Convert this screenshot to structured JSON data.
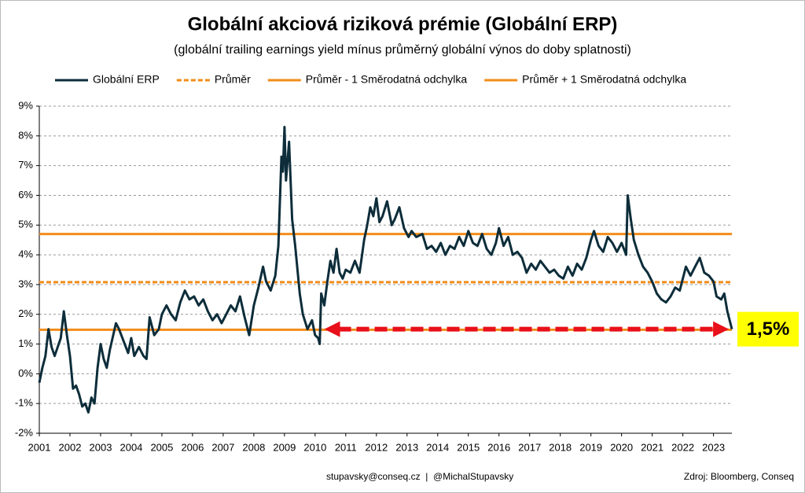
{
  "chart_data": {
    "type": "line",
    "title": "Globální akciová riziková prémie (Globální ERP)",
    "subtitle": "(globální trailing earnings yield mínus průměrný globální výnos do doby splatnosti)",
    "xlim": [
      2001,
      2023.6
    ],
    "xticks": [
      2001,
      2002,
      2003,
      2004,
      2005,
      2006,
      2007,
      2008,
      2009,
      2010,
      2011,
      2012,
      2013,
      2014,
      2015,
      2016,
      2017,
      2018,
      2019,
      2020,
      2021,
      2022,
      2023
    ],
    "ylim": [
      -2,
      9
    ],
    "yticks": [
      {
        "value": -2,
        "label": "-2%"
      },
      {
        "value": -1,
        "label": "-1%"
      },
      {
        "value": 0,
        "label": "0%"
      },
      {
        "value": 1,
        "label": "1%"
      },
      {
        "value": 2,
        "label": "2%"
      },
      {
        "value": 3,
        "label": "3%"
      },
      {
        "value": 4,
        "label": "4%"
      },
      {
        "value": 5,
        "label": "5%"
      },
      {
        "value": 6,
        "label": "6%"
      },
      {
        "value": 7,
        "label": "7%"
      },
      {
        "value": 8,
        "label": "8%"
      },
      {
        "value": 9,
        "label": "9%"
      }
    ],
    "grid": true,
    "x": [
      2001.0,
      2001.1,
      2001.2,
      2001.3,
      2001.4,
      2001.5,
      2001.6,
      2001.7,
      2001.8,
      2001.9,
      2002.0,
      2002.1,
      2002.2,
      2002.3,
      2002.4,
      2002.5,
      2002.6,
      2002.7,
      2002.8,
      2002.9,
      2003.0,
      2003.1,
      2003.2,
      2003.3,
      2003.5,
      2003.6,
      2003.75,
      2003.9,
      2004.0,
      2004.1,
      2004.25,
      2004.4,
      2004.5,
      2004.6,
      2004.75,
      2004.9,
      2005.0,
      2005.15,
      2005.3,
      2005.45,
      2005.6,
      2005.75,
      2005.9,
      2006.05,
      2006.2,
      2006.35,
      2006.5,
      2006.65,
      2006.8,
      2006.95,
      2007.1,
      2007.25,
      2007.4,
      2007.55,
      2007.7,
      2007.85,
      2008.0,
      2008.15,
      2008.3,
      2008.4,
      2008.55,
      2008.7,
      2008.8,
      2008.9,
      2008.95,
      2009.0,
      2009.05,
      2009.15,
      2009.25,
      2009.35,
      2009.5,
      2009.6,
      2009.75,
      2009.9,
      2010.0,
      2010.1,
      2010.15,
      2010.2,
      2010.3,
      2010.4,
      2010.5,
      2010.6,
      2010.7,
      2010.8,
      2010.9,
      2011.0,
      2011.15,
      2011.3,
      2011.45,
      2011.6,
      2011.7,
      2011.8,
      2011.9,
      2012.0,
      2012.1,
      2012.2,
      2012.35,
      2012.5,
      2012.6,
      2012.75,
      2012.9,
      2013.05,
      2013.15,
      2013.3,
      2013.5,
      2013.65,
      2013.8,
      2013.95,
      2014.1,
      2014.25,
      2014.4,
      2014.55,
      2014.7,
      2014.85,
      2015.0,
      2015.15,
      2015.3,
      2015.45,
      2015.6,
      2015.75,
      2015.9,
      2016.0,
      2016.15,
      2016.3,
      2016.45,
      2016.6,
      2016.75,
      2016.9,
      2017.05,
      2017.2,
      2017.35,
      2017.5,
      2017.65,
      2017.8,
      2017.95,
      2018.1,
      2018.25,
      2018.4,
      2018.55,
      2018.7,
      2018.85,
      2019.0,
      2019.1,
      2019.25,
      2019.4,
      2019.55,
      2019.7,
      2019.85,
      2020.0,
      2020.15,
      2020.2,
      2020.3,
      2020.4,
      2020.55,
      2020.7,
      2020.85,
      2021.0,
      2021.15,
      2021.3,
      2021.45,
      2021.6,
      2021.75,
      2021.9,
      2022.0,
      2022.1,
      2022.25,
      2022.4,
      2022.55,
      2022.7,
      2022.85,
      2023.0,
      2023.1,
      2023.25,
      2023.35,
      2023.45,
      2023.55,
      2023.6
    ],
    "series": [
      {
        "name": "Globální ERP",
        "color": "#0d2d3a",
        "values": [
          -0.3,
          0.2,
          0.6,
          1.5,
          0.9,
          0.6,
          0.9,
          1.2,
          2.1,
          1.3,
          0.6,
          -0.5,
          -0.4,
          -0.7,
          -1.1,
          -1.0,
          -1.3,
          -0.8,
          -1.0,
          0.2,
          1.0,
          0.5,
          0.2,
          0.8,
          1.7,
          1.5,
          1.1,
          0.7,
          1.2,
          0.6,
          0.9,
          0.6,
          0.5,
          1.9,
          1.3,
          1.5,
          2.0,
          2.3,
          2.0,
          1.8,
          2.4,
          2.8,
          2.5,
          2.6,
          2.3,
          2.5,
          2.1,
          1.8,
          2.0,
          1.7,
          2.0,
          2.3,
          2.1,
          2.6,
          1.9,
          1.3,
          2.3,
          2.9,
          3.6,
          3.1,
          2.8,
          3.3,
          4.3,
          7.3,
          6.8,
          8.3,
          6.5,
          7.8,
          5.2,
          4.3,
          2.7,
          2.0,
          1.5,
          1.8,
          1.3,
          1.2,
          1.0,
          2.7,
          2.3,
          3.1,
          3.8,
          3.4,
          4.2,
          3.4,
          3.2,
          3.5,
          3.4,
          3.8,
          3.4,
          4.5,
          5.0,
          5.6,
          5.3,
          5.9,
          5.1,
          5.3,
          5.8,
          5.0,
          5.2,
          5.6,
          4.9,
          4.6,
          4.8,
          4.6,
          4.7,
          4.2,
          4.3,
          4.1,
          4.4,
          4.0,
          4.3,
          4.2,
          4.6,
          4.3,
          4.8,
          4.4,
          4.3,
          4.7,
          4.2,
          4.0,
          4.4,
          4.9,
          4.3,
          4.6,
          4.0,
          4.1,
          3.9,
          3.4,
          3.7,
          3.5,
          3.8,
          3.6,
          3.4,
          3.5,
          3.3,
          3.2,
          3.6,
          3.3,
          3.7,
          3.5,
          3.9,
          4.5,
          4.8,
          4.3,
          4.1,
          4.6,
          4.4,
          4.1,
          4.4,
          4.0,
          6.0,
          5.2,
          4.5,
          4.0,
          3.6,
          3.4,
          3.1,
          2.7,
          2.5,
          2.4,
          2.6,
          2.9,
          2.8,
          3.2,
          3.6,
          3.3,
          3.6,
          3.9,
          3.4,
          3.3,
          3.1,
          2.6,
          2.5,
          2.7,
          2.1,
          1.7,
          1.5
        ]
      }
    ],
    "reference_lines": [
      {
        "name": "Průměr",
        "value": 3.08,
        "color": "#f28c1a",
        "dashed": true
      },
      {
        "name": "Průměr - 1 Směrodatná odchylka",
        "value": 1.48,
        "color": "#f28c1a",
        "dashed": false
      },
      {
        "name": "Průměr + 1 Směrodatná odchylka",
        "value": 4.7,
        "color": "#f28c1a",
        "dashed": false
      }
    ],
    "annotation": {
      "text": "1,5%",
      "value": 1.5,
      "x_from": 2010.3,
      "x_to": 2023.5,
      "color": "#e8101a"
    },
    "footer": {
      "contact": "stupavsky@conseq.cz  |  @MichalStupavsky",
      "source": "Zdroj: Bloomberg, Conseq"
    }
  }
}
